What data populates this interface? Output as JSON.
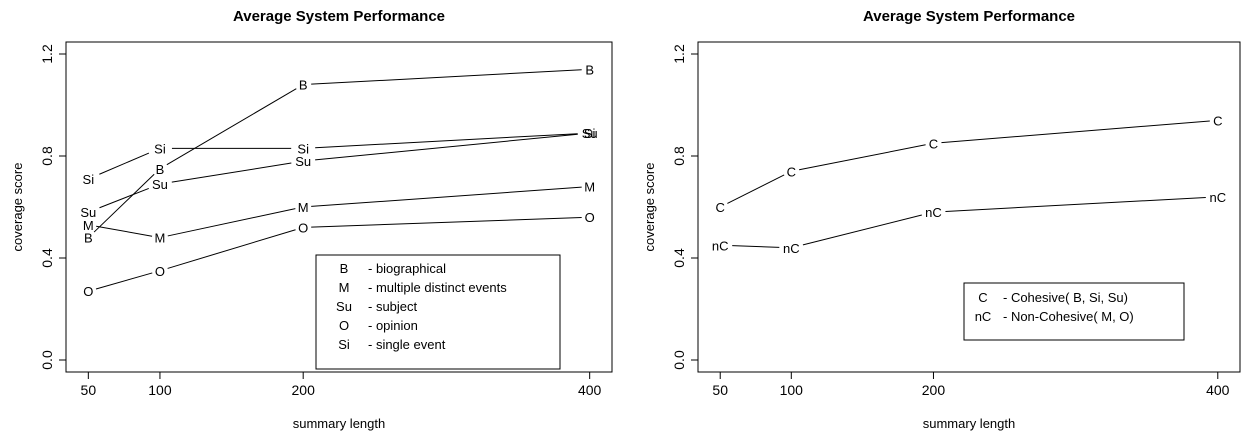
{
  "chart_data": [
    {
      "type": "line",
      "title": "Average System Performance",
      "xlabel": "summary length",
      "ylabel": "coverage score",
      "x": [
        50,
        100,
        200,
        400
      ],
      "xticks": [
        "50",
        "100",
        "200",
        "400"
      ],
      "yticks": [
        "0.0",
        "0.4",
        "0.8",
        "1.2"
      ],
      "xlim": [
        40,
        410
      ],
      "ylim": [
        0,
        1.2
      ],
      "legend_position": "bottom-right",
      "series": [
        {
          "symbol": "B",
          "values": [
            0.48,
            0.75,
            1.08,
            1.14
          ]
        },
        {
          "symbol": "M",
          "values": [
            0.53,
            0.48,
            0.6,
            0.68
          ]
        },
        {
          "symbol": "Su",
          "values": [
            0.58,
            0.69,
            0.78,
            0.89
          ]
        },
        {
          "symbol": "O",
          "values": [
            0.27,
            0.35,
            0.52,
            0.56
          ]
        },
        {
          "symbol": "Si",
          "values": [
            0.71,
            0.83,
            0.83,
            0.89
          ]
        }
      ],
      "legend": [
        {
          "symbol": "B",
          "text": "- biographical"
        },
        {
          "symbol": "M",
          "text": " - multiple distinct events"
        },
        {
          "symbol": "Su",
          "text": "- subject"
        },
        {
          "symbol": "O",
          "text": " - opinion"
        },
        {
          "symbol": "Si",
          "text": "- single event"
        }
      ]
    },
    {
      "type": "line",
      "title": "Average System Performance",
      "xlabel": "summary length",
      "ylabel": "coverage score",
      "x": [
        50,
        100,
        200,
        400
      ],
      "xticks": [
        "50",
        "100",
        "200",
        "400"
      ],
      "yticks": [
        "0.0",
        "0.4",
        "0.8",
        "1.2"
      ],
      "xlim": [
        40,
        410
      ],
      "ylim": [
        0,
        1.2
      ],
      "legend_position": "bottom-right",
      "series": [
        {
          "symbol": "C",
          "values": [
            0.6,
            0.74,
            0.85,
            0.94
          ]
        },
        {
          "symbol": "nC",
          "values": [
            0.45,
            0.44,
            0.58,
            0.64
          ]
        }
      ],
      "legend": [
        {
          "symbol": "C",
          "text": " - Cohesive( B, Si, Su)"
        },
        {
          "symbol": "nC",
          "text": "- Non-Cohesive( M, O)"
        }
      ]
    }
  ]
}
